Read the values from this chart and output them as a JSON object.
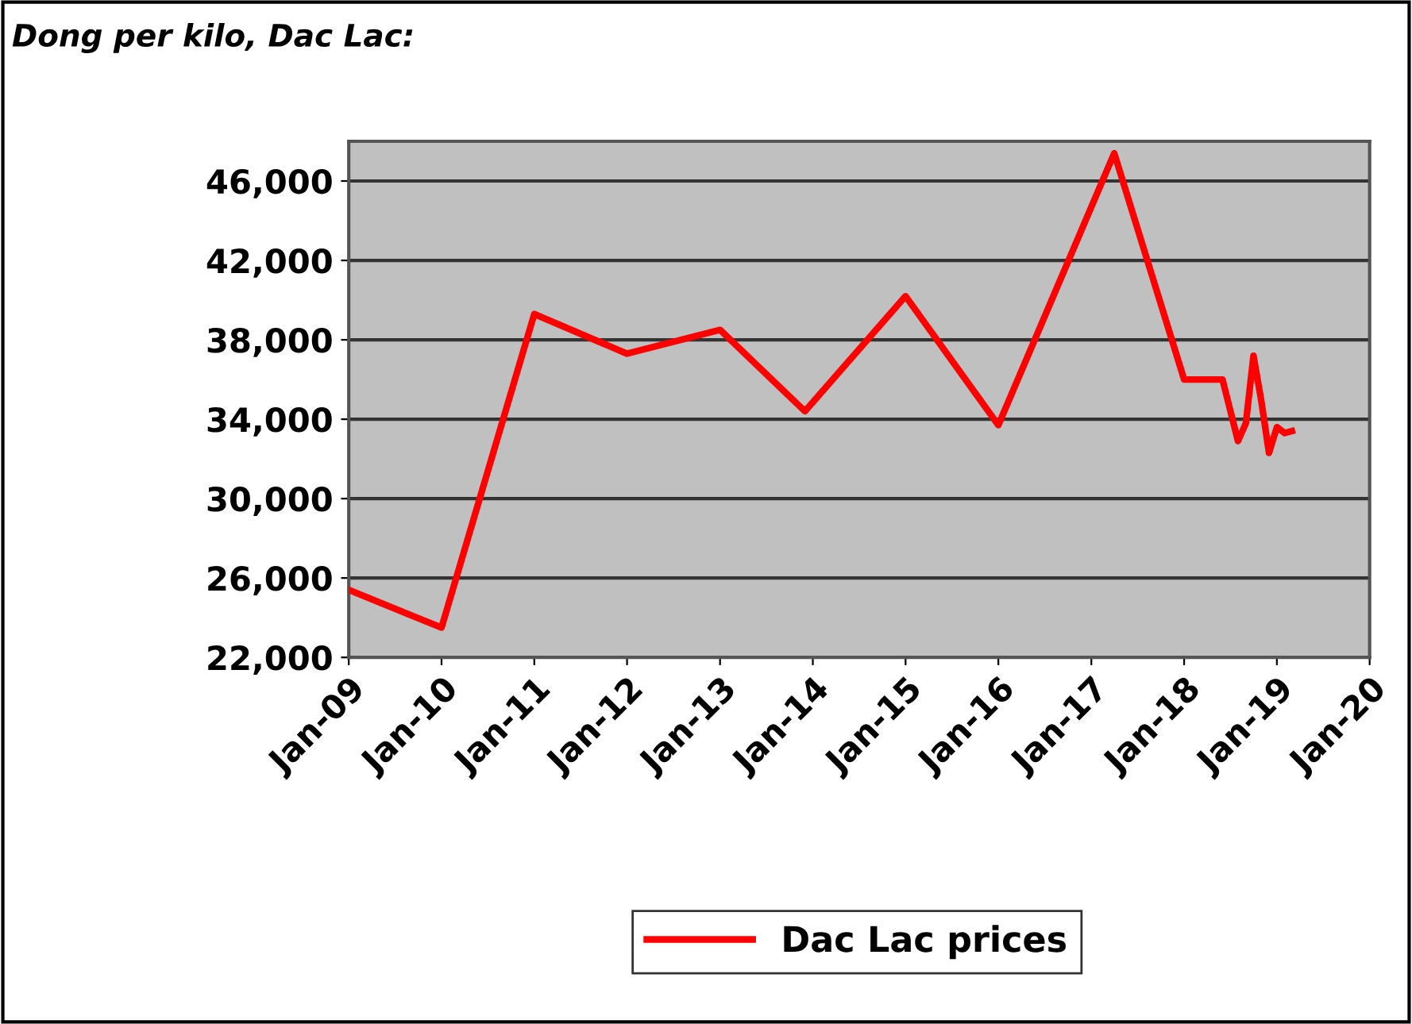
{
  "chart_data": {
    "type": "line",
    "title": "Dong per kilo, Dac Lac:",
    "x": [
      "2009-01",
      "2010-01",
      "2011-01",
      "2012-01",
      "2013-01",
      "2013-12",
      "2015-01",
      "2016-01",
      "2017-04",
      "2018-01",
      "2018-06",
      "2018-08",
      "2018-09",
      "2018-10",
      "2018-11",
      "2018-12",
      "2019-01",
      "2019-02",
      "2019-03"
    ],
    "series": [
      {
        "name": "Dac Lac prices",
        "color": "#ff0000",
        "values": [
          25400,
          23500,
          39300,
          37300,
          38500,
          34400,
          40200,
          33700,
          47400,
          36000,
          36000,
          32900,
          33800,
          37200,
          34900,
          32300,
          33600,
          33300,
          33400
        ]
      }
    ],
    "ylim": [
      22000,
      48000
    ],
    "yticks": [
      {
        "value": 22000,
        "label": "22,000"
      },
      {
        "value": 26000,
        "label": "26,000"
      },
      {
        "value": 30000,
        "label": "30,000"
      },
      {
        "value": 34000,
        "label": "34,000"
      },
      {
        "value": 38000,
        "label": "38,000"
      },
      {
        "value": 42000,
        "label": "42,000"
      },
      {
        "value": 46000,
        "label": "46,000"
      }
    ],
    "xlim": [
      "2009-01",
      "2020-01"
    ],
    "xticks": [
      {
        "value": "2009-01",
        "label": "Jan-09"
      },
      {
        "value": "2010-01",
        "label": "Jan-10"
      },
      {
        "value": "2011-01",
        "label": "Jan-11"
      },
      {
        "value": "2012-01",
        "label": "Jan-12"
      },
      {
        "value": "2013-01",
        "label": "Jan-13"
      },
      {
        "value": "2014-01",
        "label": "Jan-14"
      },
      {
        "value": "2015-01",
        "label": "Jan-15"
      },
      {
        "value": "2016-01",
        "label": "Jan-16"
      },
      {
        "value": "2017-01",
        "label": "Jan-17"
      },
      {
        "value": "2018-01",
        "label": "Jan-18"
      },
      {
        "value": "2019-01",
        "label": "Jan-19"
      },
      {
        "value": "2020-01",
        "label": "Jan-20"
      }
    ],
    "grid": "y",
    "legend": "bottom",
    "marker": "none",
    "line_style": "solid"
  }
}
